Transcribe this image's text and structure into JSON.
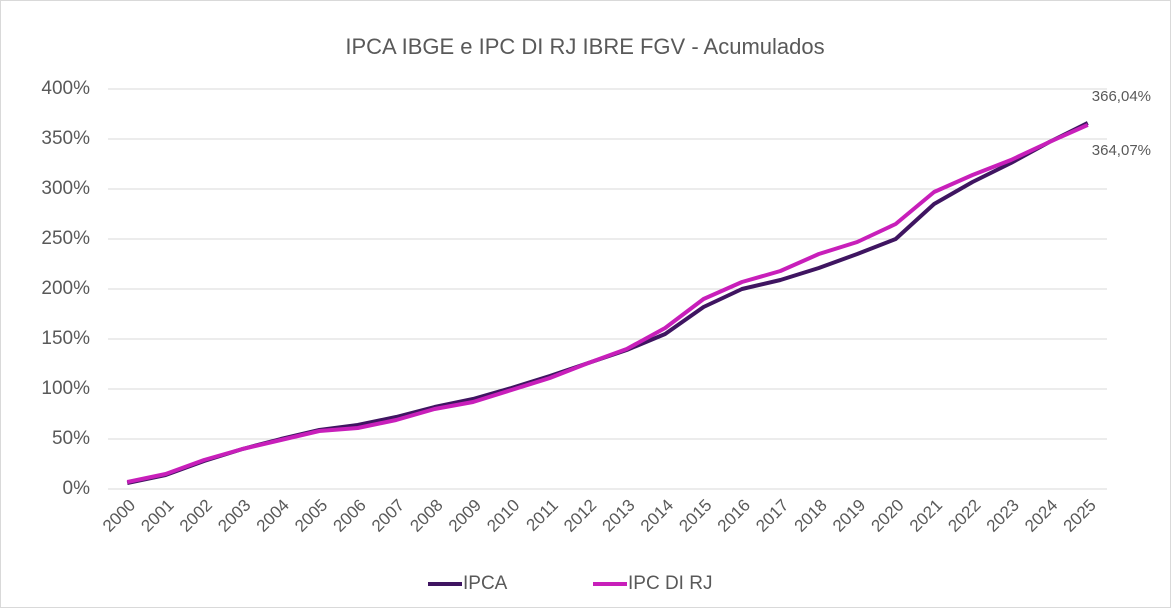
{
  "chart_data": {
    "type": "line",
    "title": "IPCA IBGE e IPC DI RJ IBRE FGV - Acumulados",
    "categories": [
      "2000",
      "2001",
      "2002",
      "2003",
      "2004",
      "2005",
      "2006",
      "2007",
      "2008",
      "2009",
      "2010",
      "2011",
      "2012",
      "2013",
      "2014",
      "2015",
      "2016",
      "2017",
      "2018",
      "2019",
      "2020",
      "2021",
      "2022",
      "2023",
      "2024",
      "2025"
    ],
    "series": [
      {
        "name": "IPCA",
        "color": "#3f1561",
        "values": [
          6,
          14,
          28,
          40,
          50,
          59,
          64,
          72,
          82,
          90,
          101,
          113,
          126,
          139,
          155,
          182,
          200,
          209,
          221,
          235,
          250,
          285,
          307,
          326,
          347,
          366.04
        ],
        "value_labels": [
          null,
          null,
          null,
          null,
          null,
          null,
          null,
          null,
          null,
          null,
          null,
          null,
          null,
          null,
          null,
          null,
          null,
          null,
          null,
          null,
          null,
          null,
          null,
          null,
          null,
          "366,04%"
        ]
      },
      {
        "name": "IPC DI RJ",
        "color": "#c81fba",
        "values": [
          7,
          15,
          29,
          40,
          49,
          58,
          61,
          69,
          80,
          87,
          99,
          111,
          126,
          140,
          161,
          190,
          207,
          218,
          235,
          247,
          265,
          297,
          314,
          329,
          347,
          364.07
        ],
        "value_labels": [
          null,
          null,
          null,
          null,
          null,
          null,
          null,
          null,
          null,
          null,
          null,
          null,
          null,
          null,
          null,
          null,
          null,
          null,
          null,
          null,
          null,
          null,
          null,
          null,
          null,
          "364,07%"
        ]
      }
    ],
    "ylim": [
      0,
      400
    ],
    "yticks": [
      {
        "value": 0,
        "label": "0%"
      },
      {
        "value": 50,
        "label": "50%"
      },
      {
        "value": 100,
        "label": "100%"
      },
      {
        "value": 150,
        "label": "150%"
      },
      {
        "value": 200,
        "label": "200%"
      },
      {
        "value": 250,
        "label": "250%"
      },
      {
        "value": 300,
        "label": "300%"
      },
      {
        "value": 350,
        "label": "350%"
      },
      {
        "value": 400,
        "label": "400%"
      }
    ],
    "grid": true,
    "legend": "bottom"
  }
}
